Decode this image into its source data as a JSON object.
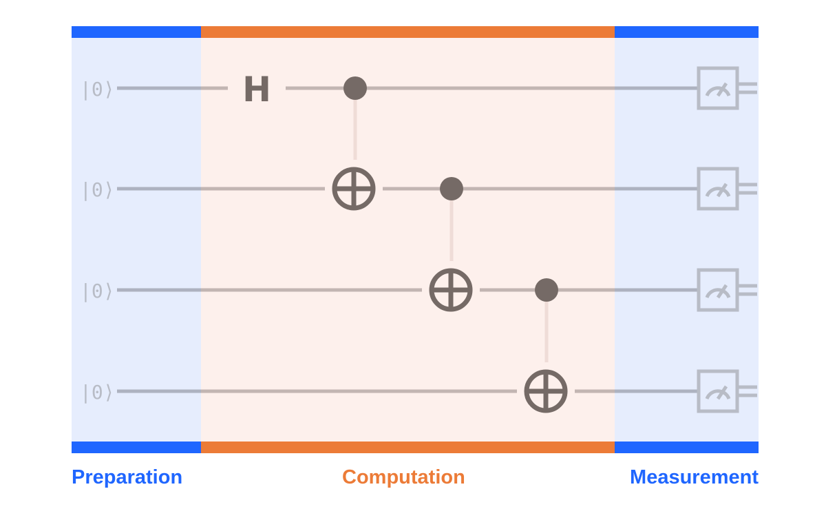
{
  "sections": [
    {
      "id": "preparation",
      "label": "Preparation",
      "color": "#1f66ff",
      "bg": "#e6edfd"
    },
    {
      "id": "computation",
      "label": "Computation",
      "color": "#ec7b37",
      "bg": "#fdf0ec"
    },
    {
      "id": "measurement",
      "label": "Measurement",
      "color": "#1f66ff",
      "bg": "#e6edfd"
    }
  ],
  "qubits": [
    {
      "initial_state": "|0⟩"
    },
    {
      "initial_state": "|0⟩"
    },
    {
      "initial_state": "|0⟩"
    },
    {
      "initial_state": "|0⟩"
    }
  ],
  "gates": [
    {
      "type": "H",
      "label": "H",
      "qubit": 0
    },
    {
      "type": "CNOT",
      "control": 0,
      "target": 1
    },
    {
      "type": "CNOT",
      "control": 1,
      "target": 2
    },
    {
      "type": "CNOT",
      "control": 2,
      "target": 3
    }
  ],
  "measurements": [
    {
      "qubit": 0,
      "icon": "meter-icon"
    },
    {
      "qubit": 1,
      "icon": "meter-icon"
    },
    {
      "qubit": 2,
      "icon": "meter-icon"
    },
    {
      "qubit": 3,
      "icon": "meter-icon"
    }
  ],
  "colors": {
    "wire_outside": "#adb2c0",
    "wire_inside": "#c2b5b2",
    "gate": "#756a66",
    "control_line": "#efdcd7",
    "ket": "#b8bcc6",
    "meter": "#b8bcc6"
  }
}
